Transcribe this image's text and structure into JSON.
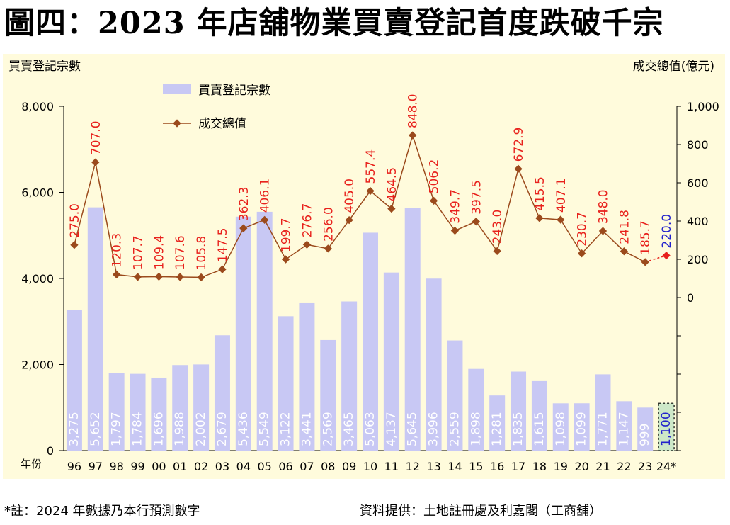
{
  "title": "圖四：2023 年店舖物業買賣登記首度跌破千宗",
  "footnote": "*註：2024 年數據乃本行預測數字",
  "source": "資料提供：土地註冊處及利嘉閣（工商舖）",
  "colors": {
    "plot_background": "#fffbdc",
    "bar": "#c8c8f4",
    "bar_forecast": "#cde8c8",
    "line": "#9b4a1c",
    "marker": "#9b4a1c",
    "marker_forecast": "#e8211c",
    "line_label": "#e8211c",
    "forecast_label": "#2222cc",
    "bar_label": "#ffffff",
    "bar_label_forecast": "#2222cc"
  },
  "chart_data": {
    "type": "bar+line",
    "left_axis_title": "買賣登記宗數",
    "right_axis_title": "成交總值(億元)",
    "x_axis_title": "年份",
    "categories": [
      "96",
      "97",
      "98",
      "99",
      "00",
      "01",
      "02",
      "03",
      "04",
      "05",
      "06",
      "07",
      "08",
      "09",
      "10",
      "11",
      "12",
      "13",
      "14",
      "15",
      "16",
      "17",
      "18",
      "19",
      "20",
      "21",
      "22",
      "23",
      "24*"
    ],
    "left_ylim": [
      0,
      8000
    ],
    "left_ticks": [
      "0",
      "2,000",
      "4,000",
      "6,000",
      "8,000"
    ],
    "right_ylim": [
      -800,
      1000
    ],
    "right_ticks": [
      "0",
      "200",
      "400",
      "600",
      "800",
      "1,000"
    ],
    "legend_position": "top-left",
    "series": [
      {
        "name": "買賣登記宗數",
        "kind": "bar",
        "axis": "left",
        "values": [
          3275,
          5652,
          1797,
          1784,
          1696,
          1988,
          2002,
          2679,
          5436,
          5549,
          3122,
          3441,
          2569,
          3465,
          5063,
          4137,
          5645,
          3996,
          2559,
          1898,
          1281,
          1835,
          1615,
          1098,
          1099,
          1771,
          1147,
          999,
          1100
        ],
        "labels": [
          "3,275",
          "5,652",
          "1,797",
          "1,784",
          "1,696",
          "1,988",
          "2,002",
          "2,679",
          "5,436",
          "5,549",
          "3,122",
          "3,441",
          "2,569",
          "3,465",
          "5,063",
          "4,137",
          "5,645",
          "3,996",
          "2,559",
          "1,898",
          "1,281",
          "1,835",
          "1,615",
          "1,098",
          "1,099",
          "1,771",
          "1,147",
          "999",
          "1,100"
        ]
      },
      {
        "name": "成交總值",
        "kind": "line",
        "axis": "right",
        "values": [
          275.0,
          707.0,
          120.3,
          107.7,
          109.4,
          107.6,
          105.8,
          147.5,
          362.3,
          406.1,
          199.7,
          276.7,
          256.0,
          405.0,
          557.4,
          464.5,
          848.0,
          506.2,
          349.7,
          397.5,
          243.0,
          672.9,
          415.5,
          407.1,
          230.7,
          348.0,
          241.8,
          185.7,
          220.0
        ],
        "labels": [
          "275.0",
          "707.0",
          "120.3",
          "107.7",
          "109.4",
          "107.6",
          "105.8",
          "147.5",
          "362.3",
          "406.1",
          "199.7",
          "276.7",
          "256.0",
          "405.0",
          "557.4",
          "464.5",
          "848.0",
          "506.2",
          "349.7",
          "397.5",
          "243.0",
          "672.9",
          "415.5",
          "407.1",
          "230.7",
          "348.0",
          "241.8",
          "185.7",
          "220.0"
        ]
      }
    ],
    "forecast_index": 28
  }
}
